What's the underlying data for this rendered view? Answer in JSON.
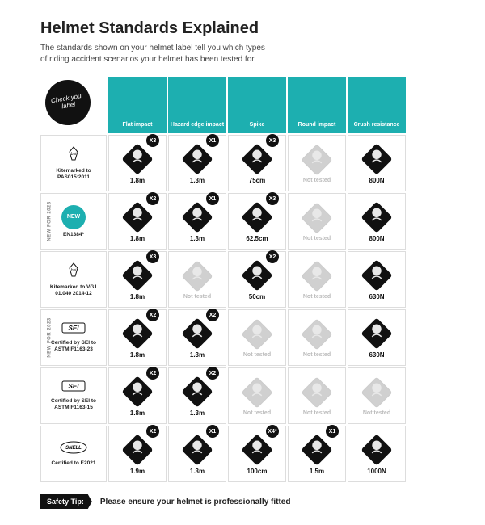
{
  "title": "Helmet Standards Explained",
  "subtitle": "The standards shown on your helmet label tell you which types of riding accident scenarios your helmet has been tested for.",
  "check_label": "Check your label",
  "colors": {
    "teal": "#1dafb0",
    "black": "#111",
    "grey": "#d0d0d0",
    "border": "#ddd"
  },
  "columns": [
    {
      "key": "flat",
      "label": "Flat impact"
    },
    {
      "key": "hazard",
      "label": "Hazard edge impact"
    },
    {
      "key": "spike",
      "label": "Spike"
    },
    {
      "key": "round",
      "label": "Round impact"
    },
    {
      "key": "crush",
      "label": "Crush resistance"
    }
  ],
  "rows": [
    {
      "badge": "bsi",
      "label": "Kitemarked to PAS015:2011",
      "new": false,
      "cells": [
        {
          "t": true,
          "c": "X3",
          "v": "1.8m"
        },
        {
          "t": true,
          "c": "X1",
          "v": "1.3m"
        },
        {
          "t": true,
          "c": "X3",
          "v": "75cm"
        },
        {
          "t": false,
          "v": "Not tested"
        },
        {
          "t": true,
          "v": "800N"
        }
      ]
    },
    {
      "badge": "new",
      "label": "EN1384*",
      "new": true,
      "cells": [
        {
          "t": true,
          "c": "X2",
          "v": "1.8m"
        },
        {
          "t": true,
          "c": "X1",
          "v": "1.3m"
        },
        {
          "t": true,
          "c": "X3",
          "v": "62.5cm"
        },
        {
          "t": false,
          "v": "Not tested"
        },
        {
          "t": true,
          "v": "800N"
        }
      ]
    },
    {
      "badge": "bsi",
      "label": "Kitemarked to VG1 01.040 2014-12",
      "new": false,
      "cells": [
        {
          "t": true,
          "c": "X3",
          "v": "1.8m"
        },
        {
          "t": false,
          "v": "Not tested"
        },
        {
          "t": true,
          "c": "X2",
          "v": "50cm"
        },
        {
          "t": false,
          "v": "Not tested"
        },
        {
          "t": true,
          "v": "630N"
        }
      ]
    },
    {
      "badge": "sei",
      "label": "Certified by SEI to ASTM F1163-23",
      "new": true,
      "cells": [
        {
          "t": true,
          "c": "X2",
          "v": "1.8m"
        },
        {
          "t": true,
          "c": "X2",
          "v": "1.3m"
        },
        {
          "t": false,
          "v": "Not tested"
        },
        {
          "t": false,
          "v": "Not tested"
        },
        {
          "t": true,
          "v": "630N"
        }
      ]
    },
    {
      "badge": "sei",
      "label": "Certified by SEI to ASTM F1163-15",
      "new": false,
      "cells": [
        {
          "t": true,
          "c": "X2",
          "v": "1.8m"
        },
        {
          "t": true,
          "c": "X2",
          "v": "1.3m"
        },
        {
          "t": false,
          "v": "Not tested"
        },
        {
          "t": false,
          "v": "Not tested"
        },
        {
          "t": false,
          "v": "Not tested"
        }
      ]
    },
    {
      "badge": "snell",
      "label": "Certified to E2021",
      "new": false,
      "cells": [
        {
          "t": true,
          "c": "X2",
          "v": "1.9m"
        },
        {
          "t": true,
          "c": "X1",
          "v": "1.3m"
        },
        {
          "t": true,
          "c": "X4*",
          "v": "100cm"
        },
        {
          "t": true,
          "c": "X1",
          "v": "1.5m"
        },
        {
          "t": true,
          "v": "1000N"
        }
      ]
    }
  ],
  "tip_badge": "Safety Tip:",
  "tip_text": "Please ensure your helmet is professionally fitted",
  "new_tag": "NEW FOR 2023",
  "badges": {
    "bsi": "bsi",
    "sei": "SEI",
    "snell": "SNELL",
    "new": "NEW"
  }
}
